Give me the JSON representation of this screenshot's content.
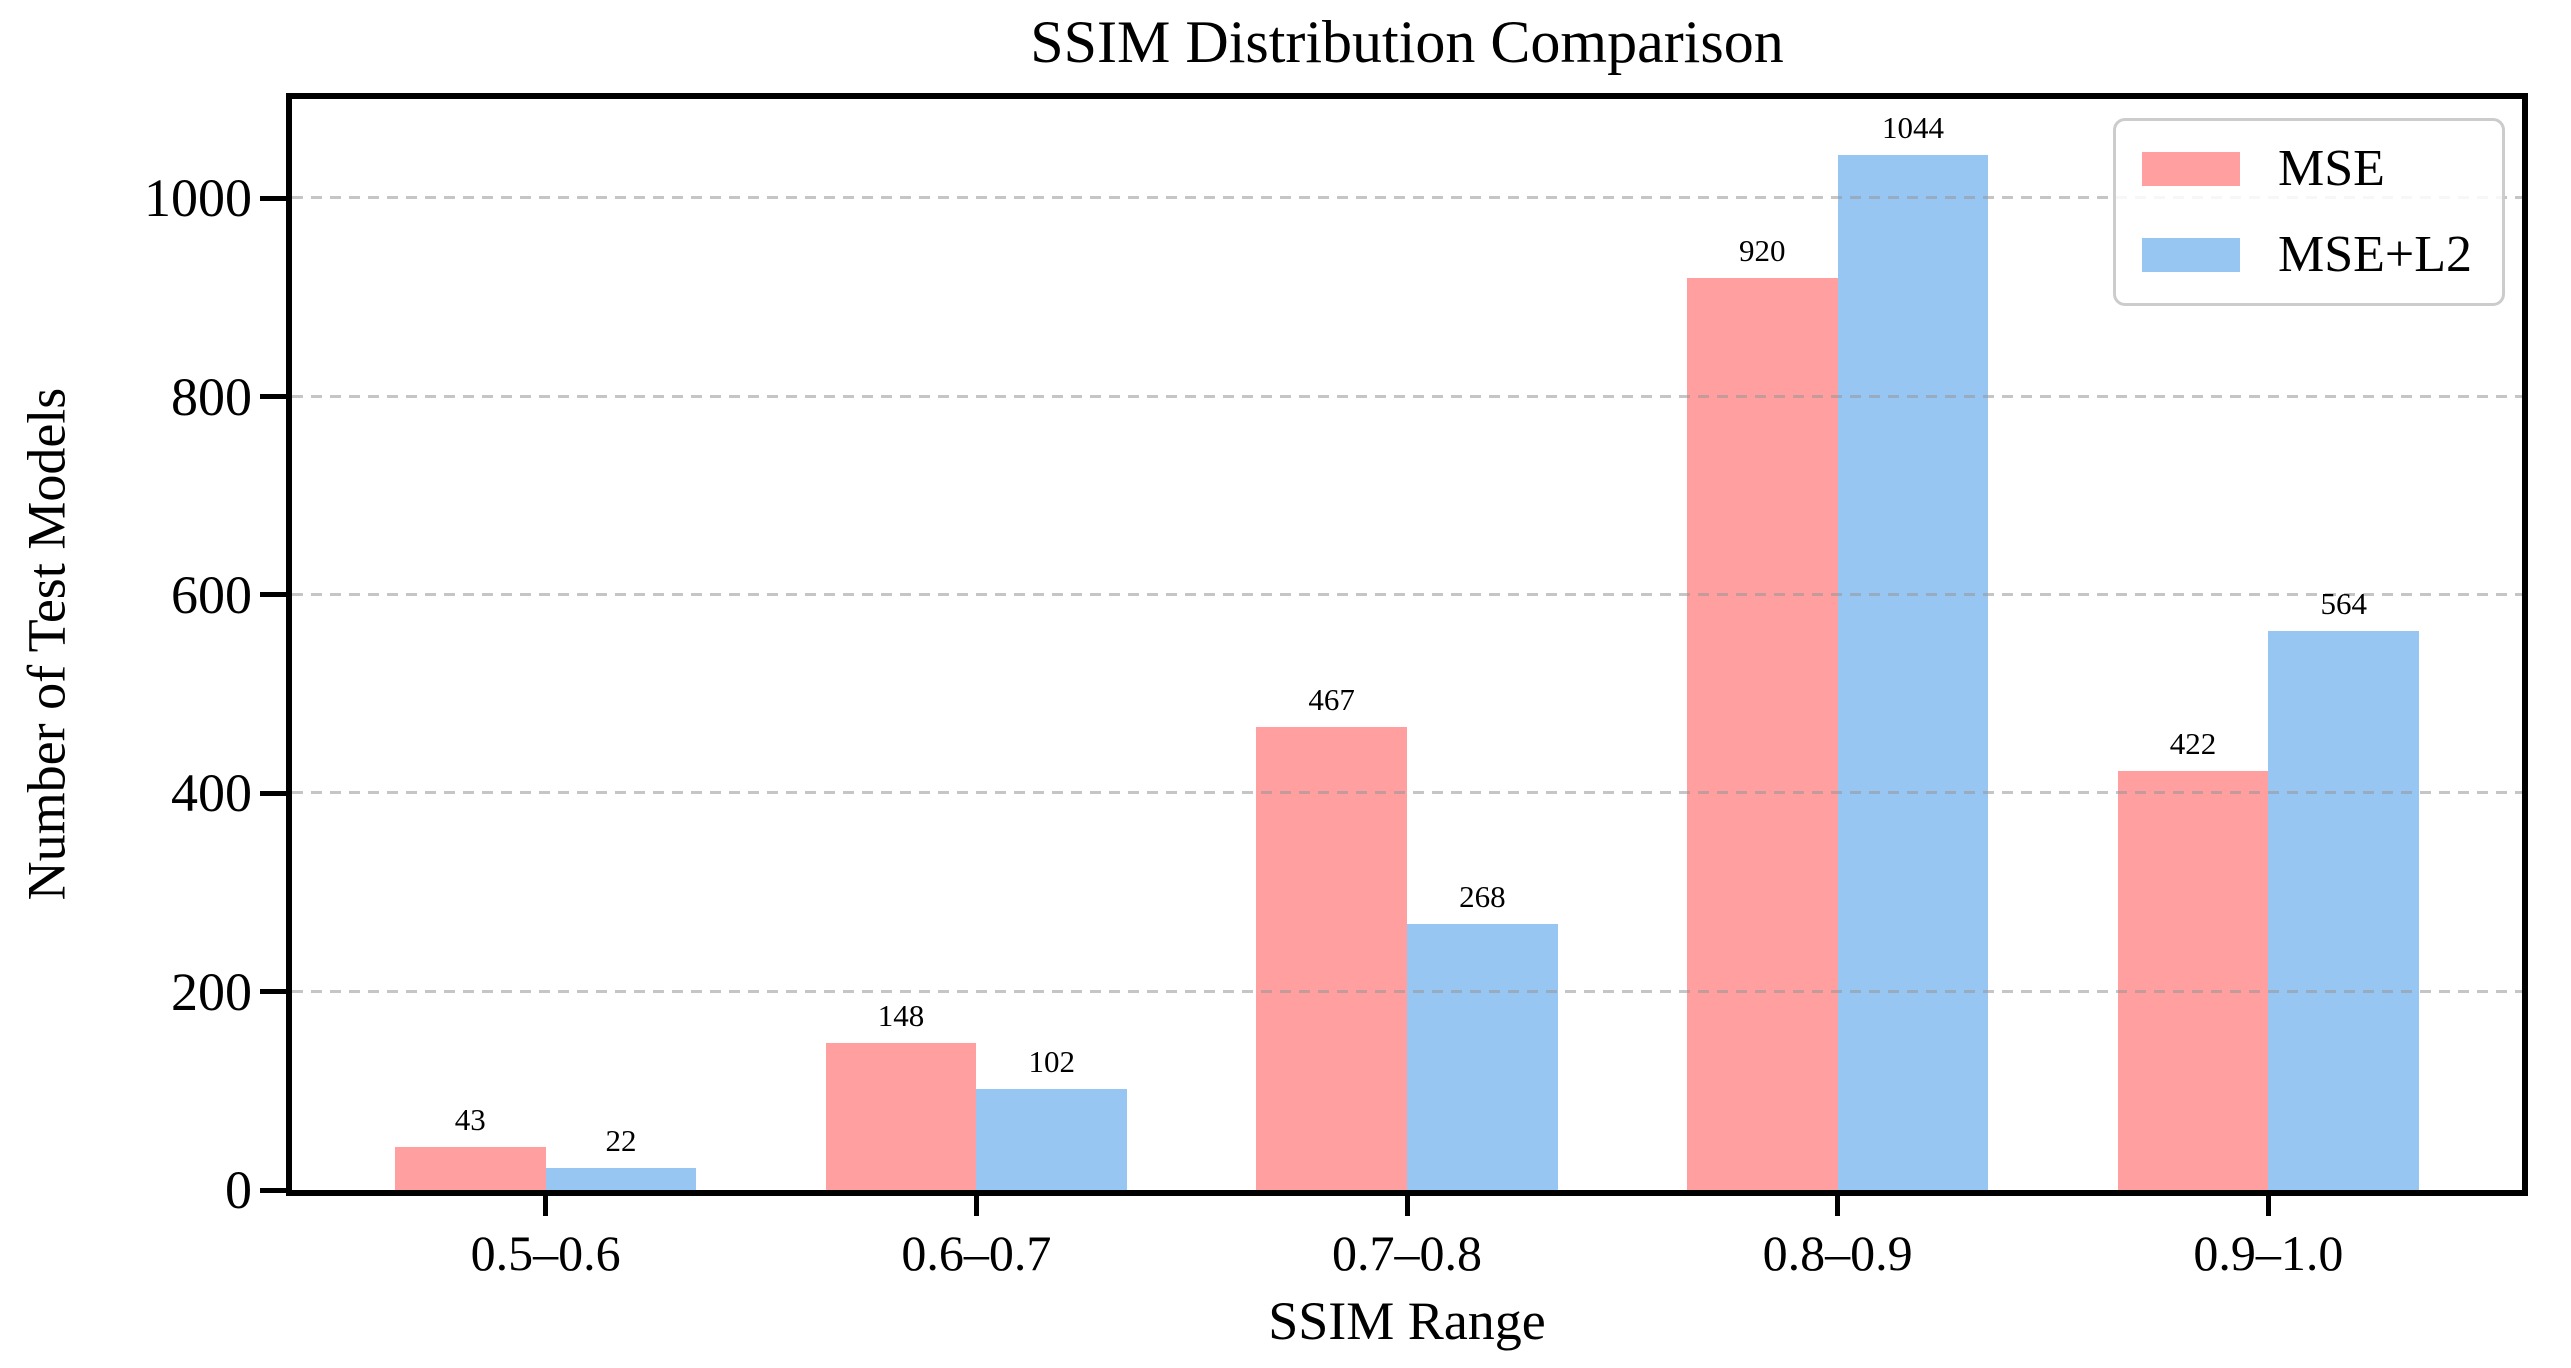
{
  "chart_data": {
    "type": "bar",
    "title": "SSIM Distribution Comparison",
    "xlabel": "SSIM Range",
    "ylabel": "Number of Test Models",
    "categories": [
      "0.5–0.6",
      "0.6–0.7",
      "0.7–0.8",
      "0.8–0.9",
      "0.9–1.0"
    ],
    "series": [
      {
        "name": "MSE",
        "color": "#FF9F9F",
        "values": [
          43,
          148,
          467,
          920,
          422
        ]
      },
      {
        "name": "MSE+L2",
        "color": "#98C6F2",
        "values": [
          22,
          102,
          268,
          1044,
          564
        ]
      }
    ],
    "yticks": [
      0,
      200,
      400,
      600,
      800,
      1000
    ],
    "ylim": [
      0,
      1100
    ],
    "bar_width_data_units": 0.35,
    "grid": "horizontal dashed",
    "legend_position": "upper right",
    "value_labels": true
  }
}
